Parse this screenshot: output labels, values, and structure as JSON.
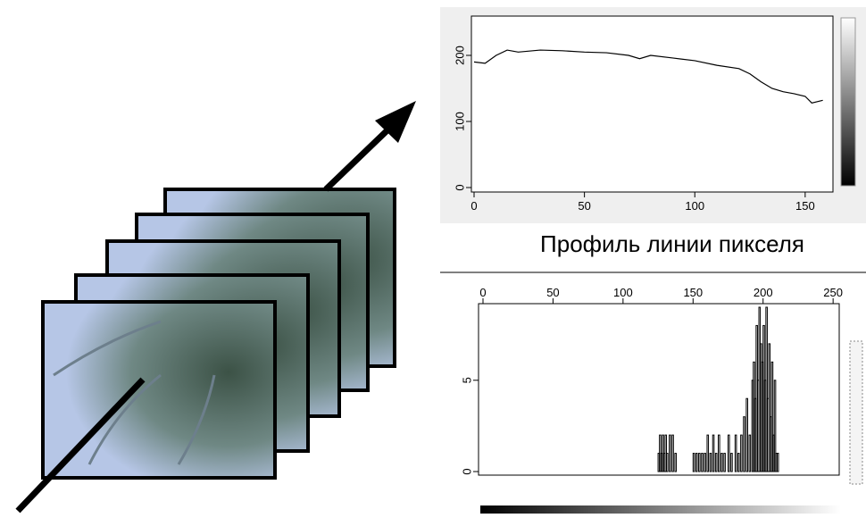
{
  "caption": "Профиль линии пикселя",
  "chart_data": [
    {
      "type": "line",
      "x": [
        0,
        5,
        10,
        15,
        20,
        30,
        40,
        50,
        60,
        70,
        75,
        80,
        90,
        100,
        110,
        120,
        125,
        130,
        135,
        140,
        145,
        150,
        153,
        158
      ],
      "values": [
        190,
        188,
        200,
        208,
        205,
        208,
        207,
        205,
        204,
        200,
        195,
        200,
        196,
        192,
        185,
        180,
        172,
        160,
        150,
        145,
        142,
        138,
        128,
        132
      ],
      "color": "#000000",
      "xlim": [
        0,
        163
      ],
      "ylim": [
        0,
        260
      ],
      "xticks": [
        0,
        50,
        100,
        150
      ],
      "yticks": [
        0,
        100,
        200
      ]
    },
    {
      "type": "bar",
      "x": [
        125,
        126,
        127,
        128,
        129,
        130,
        131,
        133,
        135,
        137,
        150,
        152,
        154,
        156,
        158,
        160,
        162,
        164,
        166,
        168,
        170,
        172,
        175,
        177,
        180,
        182,
        184,
        186,
        188,
        190,
        192,
        193,
        194,
        195,
        196,
        197,
        198,
        199,
        200,
        201,
        202,
        203,
        204,
        205,
        206,
        207,
        208,
        209,
        210
      ],
      "values": [
        1,
        2,
        1,
        2,
        1,
        2,
        1,
        2,
        2,
        1,
        1,
        1,
        1,
        1,
        1,
        2,
        1,
        2,
        1,
        2,
        1,
        1,
        2,
        1,
        2,
        1,
        2,
        3,
        4,
        2,
        5,
        6,
        4,
        8,
        5,
        9,
        7,
        6,
        8,
        5,
        9,
        4,
        7,
        3,
        6,
        2,
        5,
        1,
        1
      ],
      "color": "#000000",
      "xlim": [
        0,
        255
      ],
      "ylim": [
        0,
        9
      ],
      "xticks": [
        0,
        50,
        100,
        150,
        200,
        250
      ],
      "yticks": [
        0,
        5
      ]
    }
  ]
}
